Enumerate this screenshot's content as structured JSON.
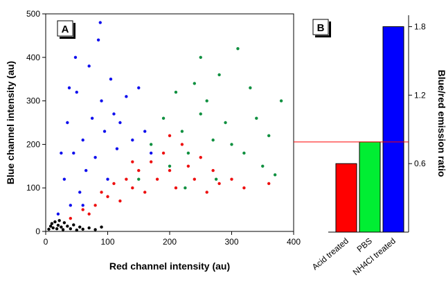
{
  "chart_data": [
    {
      "panel": "A",
      "type": "scatter",
      "xlabel": "Red channel intensity (au)",
      "ylabel": "Blue channel intensity (au)",
      "xlim": [
        0,
        400
      ],
      "ylim": [
        0,
        500
      ],
      "xticks": [
        "0",
        "100",
        "200",
        "300",
        "400"
      ],
      "yticks": [
        "0",
        "100",
        "200",
        "300",
        "400",
        "500"
      ],
      "series": [
        {
          "color": "#1010ee",
          "points": [
            [
              20,
              40
            ],
            [
              30,
              120
            ],
            [
              35,
              250
            ],
            [
              40,
              60
            ],
            [
              45,
              180
            ],
            [
              50,
              320
            ],
            [
              55,
              90
            ],
            [
              60,
              210
            ],
            [
              65,
              140
            ],
            [
              70,
              380
            ],
            [
              75,
              260
            ],
            [
              80,
              170
            ],
            [
              85,
              440
            ],
            [
              90,
              300
            ],
            [
              95,
              230
            ],
            [
              100,
              120
            ],
            [
              105,
              350
            ],
            [
              110,
              270
            ],
            [
              115,
              190
            ],
            [
              120,
              250
            ],
            [
              130,
              310
            ],
            [
              140,
              210
            ],
            [
              150,
              330
            ],
            [
              160,
              230
            ],
            [
              170,
              180
            ],
            [
              60,
              60
            ],
            [
              25,
              180
            ],
            [
              38,
              330
            ],
            [
              48,
              400
            ],
            [
              88,
              480
            ]
          ]
        },
        {
          "color": "#109040",
          "points": [
            [
              150,
              120
            ],
            [
              170,
              200
            ],
            [
              190,
              260
            ],
            [
              200,
              150
            ],
            [
              210,
              320
            ],
            [
              220,
              230
            ],
            [
              230,
              180
            ],
            [
              240,
              340
            ],
            [
              250,
              270
            ],
            [
              260,
              300
            ],
            [
              270,
              210
            ],
            [
              280,
              360
            ],
            [
              290,
              250
            ],
            [
              300,
              200
            ],
            [
              310,
              420
            ],
            [
              320,
              180
            ],
            [
              330,
              330
            ],
            [
              340,
              260
            ],
            [
              350,
              150
            ],
            [
              360,
              220
            ],
            [
              370,
              130
            ],
            [
              380,
              300
            ],
            [
              250,
              400
            ],
            [
              225,
              100
            ],
            [
              275,
              120
            ]
          ]
        },
        {
          "color": "#ee1010",
          "points": [
            [
              40,
              30
            ],
            [
              60,
              50
            ],
            [
              80,
              60
            ],
            [
              90,
              90
            ],
            [
              100,
              80
            ],
            [
              110,
              110
            ],
            [
              120,
              70
            ],
            [
              130,
              120
            ],
            [
              140,
              100
            ],
            [
              150,
              140
            ],
            [
              160,
              90
            ],
            [
              170,
              160
            ],
            [
              180,
              120
            ],
            [
              190,
              180
            ],
            [
              200,
              140
            ],
            [
              210,
              100
            ],
            [
              220,
              200
            ],
            [
              230,
              150
            ],
            [
              240,
              120
            ],
            [
              250,
              170
            ],
            [
              260,
              90
            ],
            [
              270,
              140
            ],
            [
              280,
              110
            ],
            [
              300,
              120
            ],
            [
              320,
              100
            ],
            [
              360,
              110
            ],
            [
              70,
              40
            ],
            [
              140,
              160
            ],
            [
              200,
              220
            ]
          ]
        },
        {
          "color": "#000000",
          "points": [
            [
              5,
              5
            ],
            [
              8,
              12
            ],
            [
              10,
              18
            ],
            [
              12,
              8
            ],
            [
              15,
              22
            ],
            [
              18,
              6
            ],
            [
              20,
              14
            ],
            [
              22,
              25
            ],
            [
              25,
              10
            ],
            [
              28,
              4
            ],
            [
              30,
              20
            ],
            [
              35,
              12
            ],
            [
              40,
              6
            ],
            [
              45,
              15
            ],
            [
              50,
              3
            ],
            [
              55,
              10
            ],
            [
              60,
              5
            ],
            [
              70,
              8
            ],
            [
              80,
              4
            ],
            [
              90,
              10
            ]
          ]
        }
      ]
    },
    {
      "panel": "B",
      "type": "bar",
      "ylabel": "Blue/red emission ratio",
      "categories": [
        "Acid treated",
        "PBS",
        "NH4Cl treated"
      ],
      "values": [
        0.6,
        0.79,
        1.8
      ],
      "colors": [
        "#ff0000",
        "#00ee33",
        "#0000ff"
      ],
      "ylim": [
        0,
        1.9
      ],
      "yticks": [
        0.6,
        1.2,
        1.8
      ],
      "yticklabels": [
        "0.6",
        "1.2",
        "1.8"
      ],
      "reference_line": 0.79
    }
  ]
}
